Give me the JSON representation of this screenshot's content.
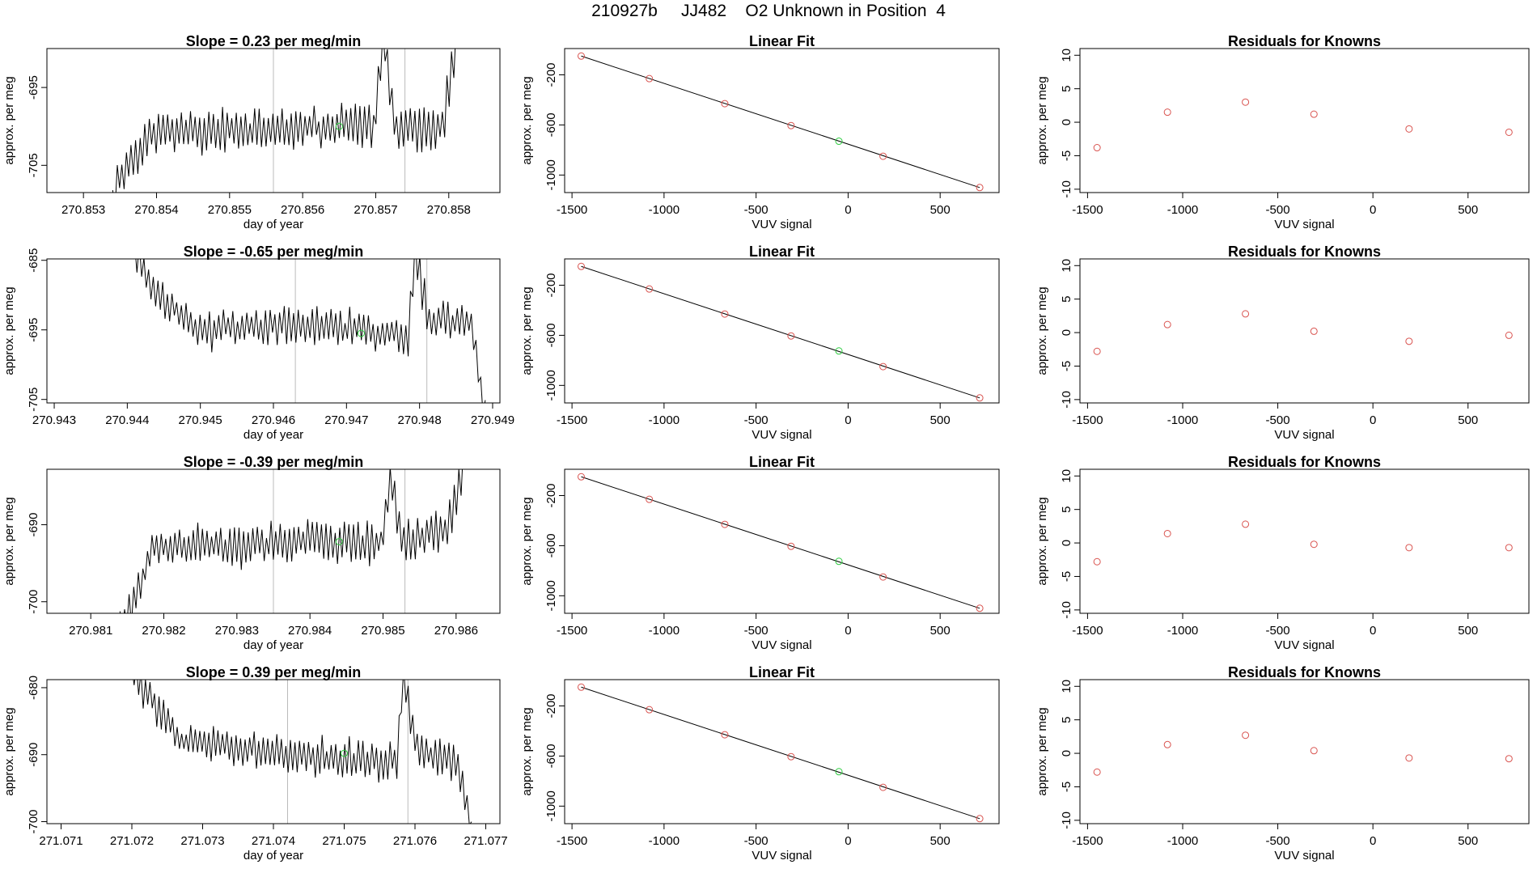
{
  "page": {
    "title": "210927b     JJ482    O2 Unknown in Position  4"
  },
  "labels": {
    "linear_fit_title": "Linear Fit",
    "residuals_title": "Residuals for Knowns",
    "day_xlabel": "day of year",
    "vuv_xlabel": "VUV signal",
    "ylabel": "approx. per meg"
  },
  "colors": {
    "trace": "#000000",
    "known_point": "#d9534f",
    "unknown_point": "#2ecc40",
    "divider": "#bbbbbb"
  },
  "chart_data": [
    {
      "type": "line",
      "panel": "timeseries",
      "row": 1,
      "title": "Slope =  0.23  per meg/min",
      "xlabel": "day of year",
      "ylabel": "approx. per meg",
      "xlim": [
        270.8525,
        270.8587
      ],
      "ylim": [
        -708.5,
        -690.0
      ],
      "xticks": [
        "270.853",
        "270.854",
        "270.855",
        "270.856",
        "270.857",
        "270.858"
      ],
      "xtick_values": [
        270.853,
        270.854,
        270.855,
        270.856,
        270.857,
        270.858
      ],
      "yticks": [
        "-695",
        "-705"
      ],
      "ytick_values": [
        -695,
        -705
      ],
      "dividers": [
        270.8556,
        270.8574
      ],
      "unknown_point": {
        "x": 270.8565,
        "y": -700.0
      },
      "trace_x_start": 270.8534,
      "trace_x_end": 270.8581,
      "trace_seed": 11,
      "trace_anchors": [
        [
          0,
          -709.5
        ],
        [
          0.03,
          -705.5
        ],
        [
          0.12,
          -700.5
        ],
        [
          0.45,
          -700.3
        ],
        [
          0.65,
          -700.0
        ],
        [
          0.76,
          -700.0
        ],
        [
          0.79,
          -688.5
        ],
        [
          0.82,
          -700.0
        ],
        [
          0.96,
          -700.5
        ],
        [
          1.0,
          -689.0
        ]
      ]
    },
    {
      "type": "scatter",
      "panel": "linear_fit",
      "row": 1,
      "title": "Linear Fit",
      "xlabel": "VUV signal",
      "ylabel": "approx. per meg",
      "xlim": [
        -1540,
        820
      ],
      "ylim": [
        -1140,
        10
      ],
      "xticks": [
        "-1500",
        "-1000",
        "-500",
        "0",
        "500"
      ],
      "xtick_values": [
        -1500,
        -1000,
        -500,
        0,
        500
      ],
      "yticks": [
        "-200",
        "-600",
        "-1000"
      ],
      "ytick_values": [
        -200,
        -600,
        -1000
      ],
      "fit_line": [
        [
          -1450,
          -50
        ],
        [
          715,
          -1100
        ]
      ],
      "known_points": [
        [
          -1450,
          -50
        ],
        [
          -1080,
          -230
        ],
        [
          -670,
          -430
        ],
        [
          -310,
          -605
        ],
        [
          190,
          -850
        ],
        [
          715,
          -1100
        ]
      ],
      "unknown_point": [
        -50,
        -730
      ]
    },
    {
      "type": "scatter",
      "panel": "residuals",
      "row": 1,
      "title": "Residuals for Knowns",
      "xlabel": "VUV signal",
      "ylabel": "approx. per meg",
      "xlim": [
        -1540,
        820
      ],
      "ylim": [
        -10.5,
        11
      ],
      "xticks": [
        "-1500",
        "-1000",
        "-500",
        "0",
        "500"
      ],
      "xtick_values": [
        -1500,
        -1000,
        -500,
        0,
        500
      ],
      "yticks": [
        "10",
        "5",
        "0",
        "-5",
        "-10"
      ],
      "ytick_values": [
        10,
        5,
        0,
        -5,
        -10
      ],
      "points": [
        [
          -1450,
          -3.8
        ],
        [
          -1080,
          1.5
        ],
        [
          -670,
          3.0
        ],
        [
          -310,
          1.2
        ],
        [
          190,
          -1.0
        ],
        [
          715,
          -1.5
        ]
      ]
    },
    {
      "type": "line",
      "panel": "timeseries",
      "row": 2,
      "title": "Slope =  -0.65  per meg/min",
      "xlabel": "day of year",
      "ylabel": "approx. per meg",
      "xlim": [
        270.9429,
        270.9491
      ],
      "ylim": [
        -705.5,
        -684.8
      ],
      "xticks": [
        "270.943",
        "270.944",
        "270.945",
        "270.946",
        "270.947",
        "270.948",
        "270.949"
      ],
      "xtick_values": [
        270.943,
        270.944,
        270.945,
        270.946,
        270.947,
        270.948,
        270.949
      ],
      "yticks": [
        "-685",
        "-695",
        "-705"
      ],
      "ytick_values": [
        -685,
        -695,
        -705
      ],
      "dividers": [
        270.9463,
        270.9481
      ],
      "unknown_point": {
        "x": 270.9472,
        "y": -695.5
      },
      "trace_x_start": 270.9441,
      "trace_x_end": 270.9489,
      "trace_seed": 23,
      "trace_anchors": [
        [
          0,
          -684.0
        ],
        [
          0.05,
          -689.0
        ],
        [
          0.18,
          -695.0
        ],
        [
          0.45,
          -694.5
        ],
        [
          0.62,
          -695.0
        ],
        [
          0.78,
          -695.5
        ],
        [
          0.8,
          -684.5
        ],
        [
          0.84,
          -693.5
        ],
        [
          0.96,
          -694.0
        ],
        [
          1.0,
          -707.0
        ]
      ]
    },
    {
      "type": "scatter",
      "panel": "linear_fit",
      "row": 2,
      "title": "Linear Fit",
      "xlabel": "VUV signal",
      "ylabel": "approx. per meg",
      "xlim": [
        -1540,
        820
      ],
      "ylim": [
        -1140,
        10
      ],
      "xticks": [
        "-1500",
        "-1000",
        "-500",
        "0",
        "500"
      ],
      "xtick_values": [
        -1500,
        -1000,
        -500,
        0,
        500
      ],
      "yticks": [
        "-200",
        "-600",
        "-1000"
      ],
      "ytick_values": [
        -200,
        -600,
        -1000
      ],
      "fit_line": [
        [
          -1450,
          -50
        ],
        [
          715,
          -1100
        ]
      ],
      "known_points": [
        [
          -1450,
          -50
        ],
        [
          -1080,
          -230
        ],
        [
          -670,
          -430
        ],
        [
          -310,
          -605
        ],
        [
          190,
          -850
        ],
        [
          715,
          -1100
        ]
      ],
      "unknown_point": [
        -50,
        -725
      ]
    },
    {
      "type": "scatter",
      "panel": "residuals",
      "row": 2,
      "title": "Residuals for Knowns",
      "xlabel": "VUV signal",
      "ylabel": "approx. per meg",
      "xlim": [
        -1540,
        820
      ],
      "ylim": [
        -10.5,
        11
      ],
      "xticks": [
        "-1500",
        "-1000",
        "-500",
        "0",
        "500"
      ],
      "xtick_values": [
        -1500,
        -1000,
        -500,
        0,
        500
      ],
      "yticks": [
        "10",
        "5",
        "0",
        "-5",
        "-10"
      ],
      "ytick_values": [
        10,
        5,
        0,
        -5,
        -10
      ],
      "points": [
        [
          -1450,
          -2.8
        ],
        [
          -1080,
          1.2
        ],
        [
          -670,
          2.8
        ],
        [
          -310,
          0.2
        ],
        [
          190,
          -1.3
        ],
        [
          715,
          -0.4
        ]
      ]
    },
    {
      "type": "line",
      "panel": "timeseries",
      "row": 3,
      "title": "Slope =  -0.39  per meg/min",
      "xlabel": "day of year",
      "ylabel": "approx. per meg",
      "xlim": [
        270.9804,
        270.9866
      ],
      "ylim": [
        -701.5,
        -682.8
      ],
      "xticks": [
        "270.981",
        "270.982",
        "270.983",
        "270.984",
        "270.985",
        "270.986"
      ],
      "xtick_values": [
        270.981,
        270.982,
        270.983,
        270.984,
        270.985,
        270.986
      ],
      "yticks": [
        "-690",
        "-700"
      ],
      "ytick_values": [
        -690,
        -700
      ],
      "dividers": [
        270.9835,
        270.9853
      ],
      "unknown_point": {
        "x": 270.9844,
        "y": -692.2
      },
      "trace_x_start": 270.9814,
      "trace_x_end": 270.9861,
      "trace_seed": 37,
      "trace_anchors": [
        [
          0,
          -703.0
        ],
        [
          0.04,
          -700.0
        ],
        [
          0.1,
          -693.0
        ],
        [
          0.45,
          -692.5
        ],
        [
          0.6,
          -692.0
        ],
        [
          0.76,
          -692.5
        ],
        [
          0.79,
          -683.0
        ],
        [
          0.82,
          -692.0
        ],
        [
          0.95,
          -691.0
        ],
        [
          1.0,
          -682.0
        ]
      ]
    },
    {
      "type": "scatter",
      "panel": "linear_fit",
      "row": 3,
      "title": "Linear Fit",
      "xlabel": "VUV signal",
      "ylabel": "approx. per meg",
      "xlim": [
        -1540,
        820
      ],
      "ylim": [
        -1140,
        10
      ],
      "xticks": [
        "-1500",
        "-1000",
        "-500",
        "0",
        "500"
      ],
      "xtick_values": [
        -1500,
        -1000,
        -500,
        0,
        500
      ],
      "yticks": [
        "-200",
        "-600",
        "-1000"
      ],
      "ytick_values": [
        -200,
        -600,
        -1000
      ],
      "fit_line": [
        [
          -1450,
          -50
        ],
        [
          715,
          -1100
        ]
      ],
      "known_points": [
        [
          -1450,
          -50
        ],
        [
          -1080,
          -230
        ],
        [
          -670,
          -430
        ],
        [
          -310,
          -605
        ],
        [
          190,
          -850
        ],
        [
          715,
          -1100
        ]
      ],
      "unknown_point": [
        -50,
        -725
      ]
    },
    {
      "type": "scatter",
      "panel": "residuals",
      "row": 3,
      "title": "Residuals for Knowns",
      "xlabel": "VUV signal",
      "ylabel": "approx. per meg",
      "xlim": [
        -1540,
        820
      ],
      "ylim": [
        -10.5,
        11
      ],
      "xticks": [
        "-1500",
        "-1000",
        "-500",
        "0",
        "500"
      ],
      "xtick_values": [
        -1500,
        -1000,
        -500,
        0,
        500
      ],
      "yticks": [
        "10",
        "5",
        "0",
        "-5",
        "-10"
      ],
      "ytick_values": [
        10,
        5,
        0,
        -5,
        -10
      ],
      "points": [
        [
          -1450,
          -2.8
        ],
        [
          -1080,
          1.4
        ],
        [
          -670,
          2.8
        ],
        [
          -310,
          -0.2
        ],
        [
          190,
          -0.7
        ],
        [
          715,
          -0.7
        ]
      ]
    },
    {
      "type": "line",
      "panel": "timeseries",
      "row": 4,
      "title": "Slope =  0.39  per meg/min",
      "xlabel": "day of year",
      "ylabel": "approx. per meg",
      "xlim": [
        271.0708,
        271.0772
      ],
      "ylim": [
        -700.3,
        -678.8
      ],
      "xticks": [
        "271.071",
        "271.072",
        "271.073",
        "271.074",
        "271.075",
        "271.076",
        "271.077"
      ],
      "xtick_values": [
        271.071,
        271.072,
        271.073,
        271.074,
        271.075,
        271.076,
        271.077
      ],
      "yticks": [
        "-680",
        "-690",
        "-700"
      ],
      "ytick_values": [
        -680,
        -690,
        -700
      ],
      "dividers": [
        271.0742,
        271.0759
      ],
      "unknown_point": {
        "x": 271.075,
        "y": -689.8
      },
      "trace_x_start": 271.072,
      "trace_x_end": 271.0768,
      "trace_seed": 53,
      "trace_anchors": [
        [
          0,
          -678.0
        ],
        [
          0.05,
          -681.0
        ],
        [
          0.15,
          -688.0
        ],
        [
          0.45,
          -690.0
        ],
        [
          0.62,
          -690.5
        ],
        [
          0.78,
          -691.0
        ],
        [
          0.8,
          -678.5
        ],
        [
          0.84,
          -689.5
        ],
        [
          0.96,
          -691.0
        ],
        [
          1.0,
          -701.0
        ]
      ]
    },
    {
      "type": "scatter",
      "panel": "linear_fit",
      "row": 4,
      "title": "Linear Fit",
      "xlabel": "VUV signal",
      "ylabel": "approx. per meg",
      "xlim": [
        -1540,
        820
      ],
      "ylim": [
        -1140,
        10
      ],
      "xticks": [
        "-1500",
        "-1000",
        "-500",
        "0",
        "500"
      ],
      "xtick_values": [
        -1500,
        -1000,
        -500,
        0,
        500
      ],
      "yticks": [
        "-200",
        "-600",
        "-1000"
      ],
      "ytick_values": [
        -200,
        -600,
        -1000
      ],
      "fit_line": [
        [
          -1450,
          -50
        ],
        [
          715,
          -1100
        ]
      ],
      "known_points": [
        [
          -1450,
          -50
        ],
        [
          -1080,
          -230
        ],
        [
          -670,
          -430
        ],
        [
          -310,
          -605
        ],
        [
          190,
          -850
        ],
        [
          715,
          -1100
        ]
      ],
      "unknown_point": [
        -50,
        -725
      ]
    },
    {
      "type": "scatter",
      "panel": "residuals",
      "row": 4,
      "title": "Residuals for Knowns",
      "xlabel": "VUV signal",
      "ylabel": "approx. per meg",
      "xlim": [
        -1540,
        820
      ],
      "ylim": [
        -10.5,
        11
      ],
      "xticks": [
        "-1500",
        "-1000",
        "-500",
        "0",
        "500"
      ],
      "xtick_values": [
        -1500,
        -1000,
        -500,
        0,
        500
      ],
      "yticks": [
        "10",
        "5",
        "0",
        "-5",
        "-10"
      ],
      "ytick_values": [
        10,
        5,
        0,
        -5,
        -10
      ],
      "points": [
        [
          -1450,
          -2.8
        ],
        [
          -1080,
          1.3
        ],
        [
          -670,
          2.7
        ],
        [
          -310,
          0.4
        ],
        [
          190,
          -0.7
        ],
        [
          715,
          -0.8
        ]
      ]
    }
  ]
}
